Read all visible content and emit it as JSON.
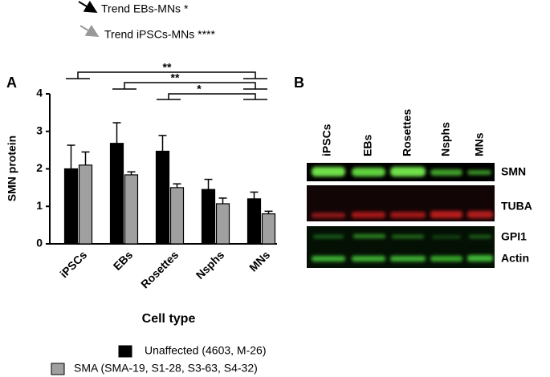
{
  "chart_data": {
    "type": "bar",
    "panel_label": "A",
    "ylabel": "SMN protein",
    "xlabel": "Cell type",
    "categories": [
      "iPSCs",
      "EBs",
      "Rosettes",
      "Nsphs",
      "MNs"
    ],
    "series": [
      {
        "name": "Unaffected (4603, M-26)",
        "color": "#000000",
        "values": [
          2.0,
          2.68,
          2.47,
          1.45,
          1.2
        ],
        "errors": [
          0.63,
          0.55,
          0.42,
          0.27,
          0.18
        ]
      },
      {
        "name": "SMA (SMA-19, S1-28, S3-63, S4-32)",
        "color": "#a0a0a0",
        "values": [
          2.1,
          1.84,
          1.5,
          1.07,
          0.8
        ],
        "errors": [
          0.35,
          0.08,
          0.1,
          0.15,
          0.07
        ]
      }
    ],
    "ylim": [
      0,
      4
    ],
    "yticks": [
      0,
      1,
      2,
      3,
      4
    ],
    "significance": [
      "**",
      "**",
      "*"
    ],
    "trends": [
      "Trend EBs-MNs *",
      "Trend iPSCs-MNs ****"
    ]
  },
  "blot": {
    "panel_label": "B",
    "columns": [
      "iPSCs",
      "EBs",
      "Rosettes",
      "Nsphs",
      "MNs"
    ],
    "rows": [
      "SMN",
      "TUBA",
      "GPI1",
      "Actin"
    ]
  }
}
